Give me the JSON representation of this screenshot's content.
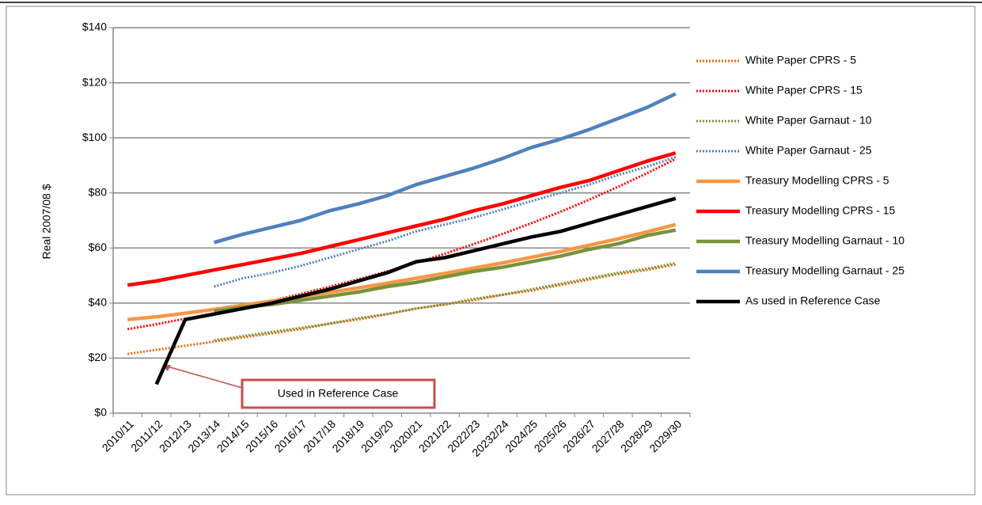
{
  "chart_data": {
    "type": "line",
    "y_axis_label": "Real 2007/08 $",
    "categories": [
      "2010/11",
      "2011/12",
      "2012/13",
      "2013/14",
      "2014/15",
      "2015/16",
      "2016/17",
      "2017/18",
      "2018/19",
      "2019/20",
      "2020/21",
      "2021/22",
      "2022/23",
      "20232/24",
      "2024/25",
      "2025/26",
      "2026/27",
      "2027/28",
      "2028/29",
      "2029/30"
    ],
    "ylim": [
      0,
      140
    ],
    "yticks": [
      {
        "value": 0,
        "label": "$0"
      },
      {
        "value": 20,
        "label": "$20"
      },
      {
        "value": 40,
        "label": "$40"
      },
      {
        "value": 60,
        "label": "$60"
      },
      {
        "value": 80,
        "label": "$80"
      },
      {
        "value": 100,
        "label": "$100"
      },
      {
        "value": 120,
        "label": "$120"
      },
      {
        "value": 140,
        "label": "$140"
      }
    ],
    "grid": true,
    "legend": "right",
    "series": [
      {
        "name": "White Paper CPRS - 5",
        "color": "#e46c0a",
        "style": "dotted",
        "values": [
          21.5,
          23,
          24.5,
          26,
          27.5,
          29,
          30.5,
          32.5,
          34,
          36,
          38,
          39.5,
          41,
          43,
          44.5,
          46.5,
          48.5,
          50.5,
          52,
          54
        ]
      },
      {
        "name": "White Paper CPRS - 15",
        "color": "#ff0000",
        "style": "dotted",
        "values": [
          30.5,
          32.3,
          34.3,
          36.3,
          38.5,
          40.8,
          43.3,
          45.9,
          48.6,
          51.5,
          54.6,
          57.9,
          61.4,
          65.1,
          69,
          73.1,
          77.5,
          82.2,
          87.1,
          92.3
        ]
      },
      {
        "name": "White Paper Garnaut - 10",
        "color": "#77933c",
        "style": "dotted",
        "values": [
          null,
          null,
          null,
          26.5,
          28,
          29.5,
          31,
          32.5,
          34.5,
          36,
          38,
          39.5,
          41.5,
          43,
          45,
          47,
          49,
          51,
          52.5,
          54.5
        ]
      },
      {
        "name": "White Paper Garnaut - 25",
        "color": "#4f81bd",
        "style": "dotted",
        "values": [
          null,
          null,
          null,
          46,
          49,
          51,
          53.5,
          56.5,
          59.5,
          62.5,
          66,
          68.5,
          71,
          74,
          77,
          80,
          83,
          86.5,
          89.5,
          93
        ]
      },
      {
        "name": "Treasury Modelling CPRS - 5",
        "color": "#f79646",
        "style": "solid",
        "values": [
          34,
          35,
          36.3,
          37.7,
          39.2,
          40.7,
          42.3,
          43.9,
          45.5,
          47.2,
          49,
          50.8,
          52.7,
          54.6,
          56.6,
          58.7,
          61,
          63.3,
          65.8,
          68.5
        ]
      },
      {
        "name": "Treasury Modelling CPRS - 15",
        "color": "#ff0000",
        "style": "solid",
        "values": [
          46.5,
          48,
          50,
          52,
          54,
          56,
          58,
          60.5,
          63,
          65.5,
          68,
          70.5,
          73.5,
          76,
          79,
          82,
          84.5,
          88,
          91.5,
          94.5
        ]
      },
      {
        "name": "Treasury Modelling Garnaut - 10",
        "color": "#77933c",
        "style": "solid",
        "values": [
          null,
          null,
          null,
          37,
          38.5,
          39.5,
          41,
          42.5,
          44,
          46,
          47.5,
          49.5,
          51.5,
          53,
          55,
          57,
          59.5,
          61.5,
          64.5,
          66.5
        ]
      },
      {
        "name": "Treasury Modelling Garnaut - 25",
        "color": "#4f81bd",
        "style": "solid",
        "values": [
          null,
          null,
          null,
          62,
          65,
          67.5,
          70,
          73.5,
          76,
          79,
          83,
          86,
          89,
          92.5,
          96.5,
          99.5,
          103,
          107,
          111,
          116
        ]
      },
      {
        "name": "As used in Reference Case",
        "color": "#000000",
        "style": "solid",
        "values": [
          null,
          10.5,
          34,
          36,
          38,
          40,
          42.5,
          45,
          48,
          51,
          55,
          56.5,
          59,
          61.5,
          64,
          66,
          69,
          72,
          75,
          78
        ]
      }
    ],
    "annotation": "Used in Reference Case"
  }
}
